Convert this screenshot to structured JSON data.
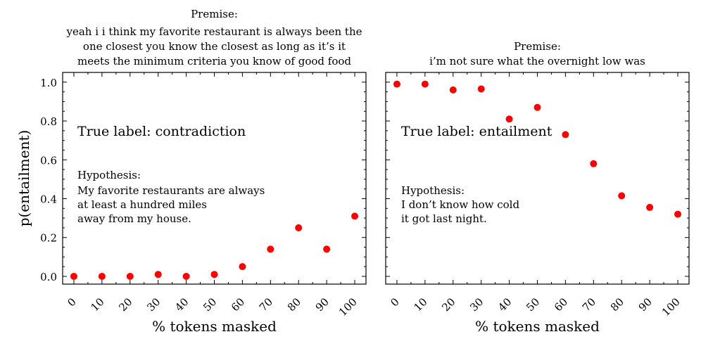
{
  "chart_data": [
    {
      "type": "scatter",
      "title_lines": [
        "Premise:",
        "yeah i i think my favorite restaurant is always been the",
        "one closest you know the closest as long as it’s it",
        "meets the minimum criteria you know of good food"
      ],
      "x": [
        0,
        10,
        20,
        30,
        40,
        50,
        60,
        70,
        80,
        90,
        100
      ],
      "y": [
        0.0,
        0.0,
        0.0,
        0.01,
        0.0,
        0.01,
        0.05,
        0.14,
        0.25,
        0.14,
        0.31
      ],
      "xlabel": "% tokens masked",
      "ylabel": "p(entailment)",
      "xticks": [
        "0",
        "10",
        "20",
        "30",
        "40",
        "50",
        "60",
        "70",
        "80",
        "90",
        "100"
      ],
      "yticks": [
        "0.0",
        "0.2",
        "0.4",
        "0.6",
        "0.8",
        "1.0"
      ],
      "ylim": [
        -0.04,
        1.05
      ],
      "xlim": [
        -4,
        104
      ],
      "true_label": "True label: contradiction",
      "hypothesis_lines": [
        "Hypothesis:",
        "My favorite restaurants are always",
        "at least a hundred miles",
        "away from my house."
      ],
      "marker_color": "#ff0000"
    },
    {
      "type": "scatter",
      "title_lines": [
        "Premise:",
        "i’m not sure what the overnight low was"
      ],
      "x": [
        0,
        10,
        20,
        30,
        40,
        50,
        60,
        70,
        80,
        90,
        100
      ],
      "y": [
        0.99,
        0.99,
        0.96,
        0.965,
        0.81,
        0.87,
        0.73,
        0.58,
        0.415,
        0.355,
        0.32
      ],
      "xlabel": "% tokens masked",
      "ylabel": "",
      "xticks": [
        "0",
        "10",
        "20",
        "30",
        "40",
        "50",
        "60",
        "70",
        "80",
        "90",
        "100"
      ],
      "yticks": [
        "0.0",
        "0.2",
        "0.4",
        "0.6",
        "0.8",
        "1.0"
      ],
      "ylim": [
        -0.04,
        1.05
      ],
      "xlim": [
        -4,
        104
      ],
      "true_label": "True label: entailment",
      "hypothesis_lines": [
        "Hypothesis:",
        "I don’t know how cold",
        "it got last night."
      ],
      "marker_color": "#ff0000"
    }
  ]
}
